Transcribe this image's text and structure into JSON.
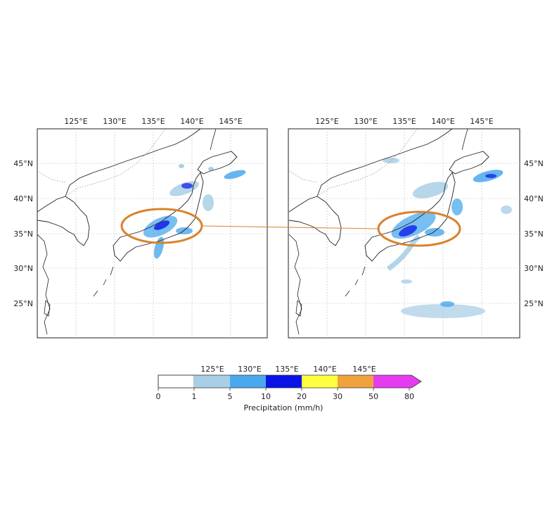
{
  "maps": {
    "panels": [
      {
        "id": "left",
        "top_ticks": [
          "125°E",
          "130°E",
          "135°E",
          "140°E",
          "145°E"
        ],
        "lat_ticks": [
          "45°N",
          "40°N",
          "35°N",
          "30°N",
          "25°N"
        ],
        "lat_side": "left"
      },
      {
        "id": "right",
        "top_ticks": [
          "125°E",
          "130°E",
          "135°E",
          "140°E",
          "145°E"
        ],
        "lat_ticks": [
          "45°N",
          "40°N",
          "35°N",
          "30°N",
          "25°N"
        ],
        "lat_side": "right"
      }
    ],
    "highlight_color": "#D9822B"
  },
  "colorbar": {
    "top_labels": [
      "125°E",
      "130°E",
      "135°E",
      "140°E",
      "145°E"
    ],
    "bounds": [
      "0",
      "1",
      "5",
      "10",
      "20",
      "30",
      "50",
      "80"
    ],
    "colors": [
      "#ffffff",
      "#a9cfe6",
      "#4aa8ee",
      "#0a14e6",
      "#ffff40",
      "#f0a23c",
      "#e63cf0"
    ],
    "label": "Precipitation (mm/h)"
  }
}
